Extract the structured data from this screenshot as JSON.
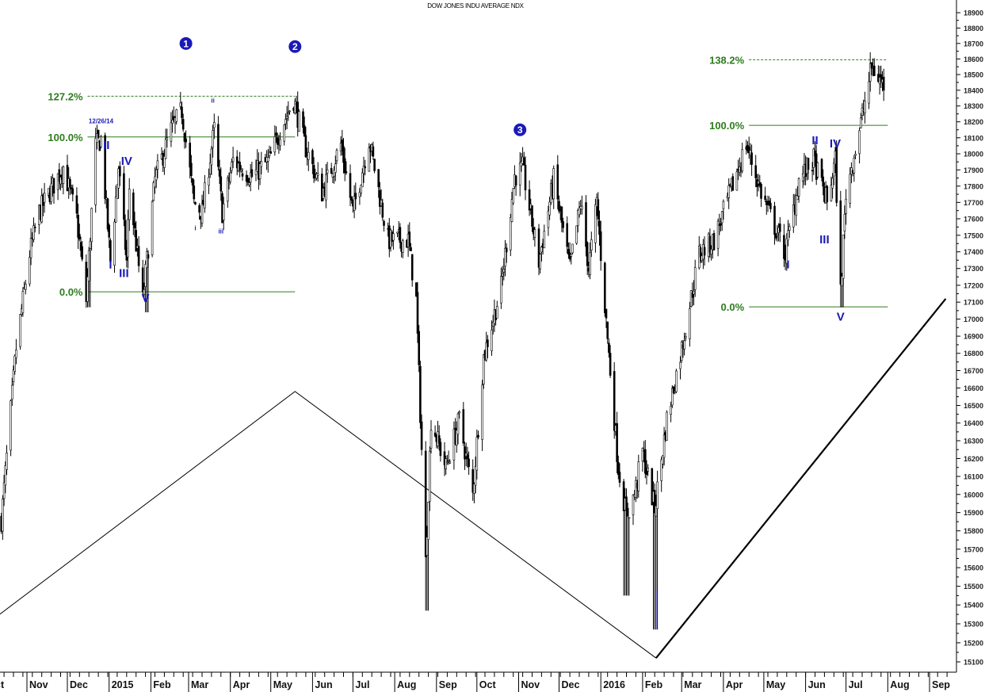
{
  "chart_data": {
    "type": "candlestick",
    "title": "DOW JONES INDU AVERAGE NDX",
    "y_scale": "log",
    "ylim": [
      15100,
      18900
    ],
    "y_ticks": [
      15100,
      15200,
      15300,
      15400,
      15500,
      15600,
      15700,
      15800,
      15900,
      16000,
      16100,
      16200,
      16300,
      16400,
      16500,
      16600,
      16700,
      16800,
      16900,
      17000,
      17100,
      17200,
      17300,
      17400,
      17500,
      17600,
      17700,
      17800,
      17900,
      18000,
      18100,
      18200,
      18300,
      18400,
      18500,
      18600,
      18700,
      18800,
      18900
    ],
    "x_ticks": [
      {
        "label": "Oct",
        "date": "2014-10-01"
      },
      {
        "label": "Nov",
        "date": "2014-11-01"
      },
      {
        "label": "Dec",
        "date": "2014-12-01"
      },
      {
        "label": "2015",
        "date": "2015-01-01"
      },
      {
        "label": "Feb",
        "date": "2015-02-01"
      },
      {
        "label": "Mar",
        "date": "2015-03-01"
      },
      {
        "label": "Apr",
        "date": "2015-04-01"
      },
      {
        "label": "May",
        "date": "2015-05-01"
      },
      {
        "label": "Jun",
        "date": "2015-06-01"
      },
      {
        "label": "Jul",
        "date": "2015-07-01"
      },
      {
        "label": "Aug",
        "date": "2015-08-01"
      },
      {
        "label": "Sep",
        "date": "2015-09-01"
      },
      {
        "label": "Oct",
        "date": "2015-10-01"
      },
      {
        "label": "Nov",
        "date": "2015-11-01"
      },
      {
        "label": "Dec",
        "date": "2015-12-01"
      },
      {
        "label": "2016",
        "date": "2016-01-01"
      },
      {
        "label": "Feb",
        "date": "2016-02-01"
      },
      {
        "label": "Mar",
        "date": "2016-03-01"
      },
      {
        "label": "Apr",
        "date": "2016-04-01"
      },
      {
        "label": "May",
        "date": "2016-05-01"
      },
      {
        "label": "Jun",
        "date": "2016-06-01"
      },
      {
        "label": "Jul",
        "date": "2016-07-01"
      },
      {
        "label": "Aug",
        "date": "2016-08-01"
      },
      {
        "label": "Sep",
        "date": "2016-09-01"
      }
    ],
    "grid": false,
    "price_path": [
      [
        "2014-10-13",
        15860
      ],
      [
        "2014-10-24",
        16830
      ],
      [
        "2014-11-03",
        17390
      ],
      [
        "2014-11-10",
        17640
      ],
      [
        "2014-11-28",
        17920
      ],
      [
        "2014-12-08",
        17600
      ],
      [
        "2014-12-15",
        17110
      ],
      [
        "2014-12-22",
        18050
      ],
      [
        "2014-12-26",
        18090
      ],
      [
        "2015-01-02",
        17340
      ],
      [
        "2015-01-08",
        17920
      ],
      [
        "2015-01-14",
        17340
      ],
      [
        "2015-01-16",
        17790
      ],
      [
        "2015-01-26",
        17110
      ],
      [
        "2015-02-04",
        17840
      ],
      [
        "2015-02-16",
        18150
      ],
      [
        "2015-02-24",
        18270
      ],
      [
        "2015-03-05",
        17700
      ],
      [
        "2015-03-11",
        17640
      ],
      [
        "2015-03-20",
        18150
      ],
      [
        "2015-03-26",
        17640
      ],
      [
        "2015-04-03",
        17960
      ],
      [
        "2015-04-17",
        17860
      ],
      [
        "2015-04-30",
        17960
      ],
      [
        "2015-05-08",
        18150
      ],
      [
        "2015-05-18",
        18340
      ],
      [
        "2015-05-26",
        18060
      ],
      [
        "2015-06-08",
        17760
      ],
      [
        "2015-06-22",
        18060
      ],
      [
        "2015-07-01",
        17640
      ],
      [
        "2015-07-13",
        18090
      ],
      [
        "2015-07-27",
        17470
      ],
      [
        "2015-08-11",
        17470
      ],
      [
        "2015-08-17",
        17110
      ],
      [
        "2015-08-24",
        15630
      ],
      [
        "2015-08-28",
        16420
      ],
      [
        "2015-09-08",
        16150
      ],
      [
        "2015-09-18",
        16420
      ],
      [
        "2015-09-28",
        16000
      ],
      [
        "2015-10-06",
        16780
      ],
      [
        "2015-10-19",
        17190
      ],
      [
        "2015-10-29",
        17860
      ],
      [
        "2015-11-04",
        17910
      ],
      [
        "2015-11-16",
        17340
      ],
      [
        "2015-11-27",
        17840
      ],
      [
        "2015-12-09",
        17300
      ],
      [
        "2015-12-17",
        17700
      ],
      [
        "2015-12-23",
        17300
      ],
      [
        "2015-12-29",
        17700
      ],
      [
        "2016-01-05",
        16980
      ],
      [
        "2016-01-14",
        16150
      ],
      [
        "2016-01-20",
        15880
      ],
      [
        "2016-01-26",
        16000
      ],
      [
        "2016-02-01",
        16240
      ],
      [
        "2016-02-10",
        15920
      ],
      [
        "2016-02-19",
        16420
      ],
      [
        "2016-03-02",
        16870
      ],
      [
        "2016-03-14",
        17390
      ],
      [
        "2016-03-25",
        17470
      ],
      [
        "2016-04-06",
        17760
      ],
      [
        "2016-04-18",
        18060
      ],
      [
        "2016-04-29",
        17760
      ],
      [
        "2016-05-17",
        17390
      ],
      [
        "2016-05-27",
        17840
      ],
      [
        "2016-06-07",
        17960
      ],
      [
        "2016-06-17",
        17700
      ],
      [
        "2016-06-23",
        17960
      ],
      [
        "2016-06-27",
        17160
      ],
      [
        "2016-07-01",
        17760
      ],
      [
        "2016-07-11",
        18150
      ],
      [
        "2016-07-20",
        18550
      ],
      [
        "2016-07-29",
        18430
      ]
    ],
    "spike_lows": [
      [
        "2014-12-16",
        17070
      ],
      [
        "2015-01-30",
        17040
      ],
      [
        "2015-08-24",
        15370
      ],
      [
        "2016-01-20",
        15450
      ],
      [
        "2016-02-11",
        15270
      ],
      [
        "2016-06-27",
        17070
      ]
    ],
    "fib_sets": [
      {
        "from": "2014-12-16",
        "to": "2015-05-19",
        "levels": [
          {
            "label": "127.2%",
            "price": 18362,
            "style": "dashed"
          },
          {
            "label": "100.0%",
            "price": 18105,
            "style": "solid"
          },
          {
            "label": "0.0%",
            "price": 17161,
            "style": "solid"
          }
        ]
      },
      {
        "from": "2016-04-20",
        "to": "2016-08-01",
        "levels": [
          {
            "label": "138.2%",
            "price": 18595,
            "style": "dashed"
          },
          {
            "label": "100.0%",
            "price": 18178,
            "style": "solid"
          },
          {
            "label": "0.0%",
            "price": 17072,
            "style": "solid"
          }
        ]
      }
    ],
    "fib_color": "#2e7d1e",
    "wave_color": "#1a1ab8",
    "circle_labels": [
      {
        "label": "1",
        "date": "2015-02-27",
        "price": 18700
      },
      {
        "label": "2",
        "date": "2015-05-19",
        "price": 18680
      },
      {
        "label": "3",
        "date": "2015-11-02",
        "price": 18150
      }
    ],
    "date_note": {
      "label": "12/26/14",
      "date": "2014-12-26",
      "price": 18190
    },
    "wave_labels": [
      {
        "label": "II",
        "date": "2014-12-30",
        "price": 18030
      },
      {
        "label": "IV",
        "date": "2015-01-14",
        "price": 17930
      },
      {
        "label": "I",
        "date": "2015-01-02",
        "price": 17300
      },
      {
        "label": "III",
        "date": "2015-01-12",
        "price": 17250
      },
      {
        "label": "V",
        "date": "2015-01-28",
        "price": 17100
      },
      {
        "label": "II",
        "date": "2016-06-08",
        "price": 18060
      },
      {
        "label": "IV",
        "date": "2016-06-23",
        "price": 18040
      },
      {
        "label": "I",
        "date": "2016-05-19",
        "price": 17300
      },
      {
        "label": "III",
        "date": "2016-06-15",
        "price": 17450
      },
      {
        "label": "V",
        "date": "2016-06-27",
        "price": 16990
      }
    ],
    "minor_wave_labels": [
      {
        "label": "i",
        "date": "2015-03-06",
        "price": 17530
      },
      {
        "label": "ii",
        "date": "2015-03-19",
        "price": 18320
      },
      {
        "label": "iii",
        "date": "2015-03-25",
        "price": 17510
      }
    ],
    "trendlines": [
      {
        "points": [
          [
            "2014-10-08",
            15330
          ],
          [
            "2015-05-19",
            16580
          ],
          [
            "2016-02-11",
            15120
          ]
        ],
        "weight": "thin"
      },
      {
        "points": [
          [
            "2016-02-11",
            15120
          ],
          [
            "2016-09-13",
            17120
          ]
        ],
        "weight": "thick"
      }
    ]
  }
}
